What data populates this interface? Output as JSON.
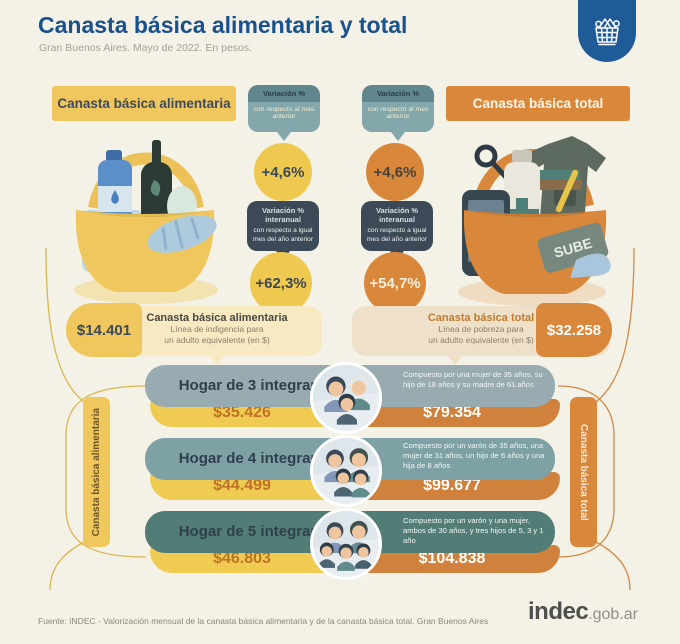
{
  "header": {
    "title": "Canasta básica alimentaria y total",
    "subtitle": "Gran Buenos Aires. Mayo de 2022. En pesos."
  },
  "bubbles": {
    "monthly_title": "Variación %",
    "monthly_sub": "con respecto al mes anterior",
    "interannual_title": "Variación % interanual",
    "interannual_sub": "con respecto a igual mes del año anterior"
  },
  "left_column": {
    "header_label": "Canasta básica alimentaria",
    "monthly_value": "+4,6%",
    "interannual_value": "+62,3%",
    "amount": "$14.401",
    "box_title": "Canasta básica alimentaria",
    "box_line1": "Línea de indigencia para",
    "box_line2": "un adulto equivalente (en $)"
  },
  "right_column": {
    "header_label": "Canasta básica total",
    "monthly_value": "+4,6%",
    "interannual_value": "+54,7%",
    "amount": "$32.258",
    "box_title": "Canasta básica total",
    "box_line1": "Línea de pobreza para",
    "box_line2": "un adulto equivalente (en $)",
    "sube_label": "SUBE"
  },
  "households": {
    "left_axis_label": "Canasta básica alimentaria",
    "right_axis_label": "Canasta básica total",
    "rows": [
      {
        "label": "Hogar de 3 integrantes",
        "cba": "$35.426",
        "cbt": "$79.354",
        "description": "Compuesto por una mujer de 35 años, su hijo de 18 años y su madre de 61 años",
        "members": 3
      },
      {
        "label": "Hogar de 4 integrantes",
        "cba": "$44.499",
        "cbt": "$99.677",
        "description": "Compuesto por un varón de 35 años, una mujer de 31 años, un hijo de 6 años y una hija de 8 años",
        "members": 4
      },
      {
        "label": "Hogar de 5 integrantes",
        "cba": "$46.803",
        "cbt": "$104.838",
        "description": "Compuesto por un varón y una mujer, ambos de 30 años, y tres hijos de 5, 3 y 1 año",
        "members": 5
      }
    ]
  },
  "footer": {
    "source": "Fuente: INDEC - Valorización mensual de la canasta básica alimentaria y de la canasta básica total. Gran Buenos Aires",
    "logo_main": "indec",
    "logo_suffix": ".gob.ar"
  },
  "colors": {
    "accent_yellow": "#EFC75D",
    "accent_orange": "#D9883B",
    "teal_dark": "#5F878D",
    "teal_light": "#83A7AB",
    "navy": "#3C4A57",
    "title_blue": "#19518E",
    "background": "#F4F1E6"
  },
  "chart_data": {
    "type": "table",
    "title": "Canasta básica alimentaria y total",
    "subtitle": "Gran Buenos Aires. Mayo de 2022. En pesos.",
    "series": [
      {
        "name": "Canasta básica alimentaria",
        "monthly_change_pct": 4.6,
        "interannual_change_pct": 62.3,
        "adult_equivalent_pesos": 14401,
        "line": "Línea de indigencia"
      },
      {
        "name": "Canasta básica total",
        "monthly_change_pct": 4.6,
        "interannual_change_pct": 54.7,
        "adult_equivalent_pesos": 32258,
        "line": "Línea de pobreza"
      }
    ],
    "categories": [
      "Hogar de 3 integrantes",
      "Hogar de 4 integrantes",
      "Hogar de 5 integrantes"
    ],
    "cba_values": [
      35426,
      44499,
      46803
    ],
    "cbt_values": [
      79354,
      99677,
      104838
    ]
  }
}
